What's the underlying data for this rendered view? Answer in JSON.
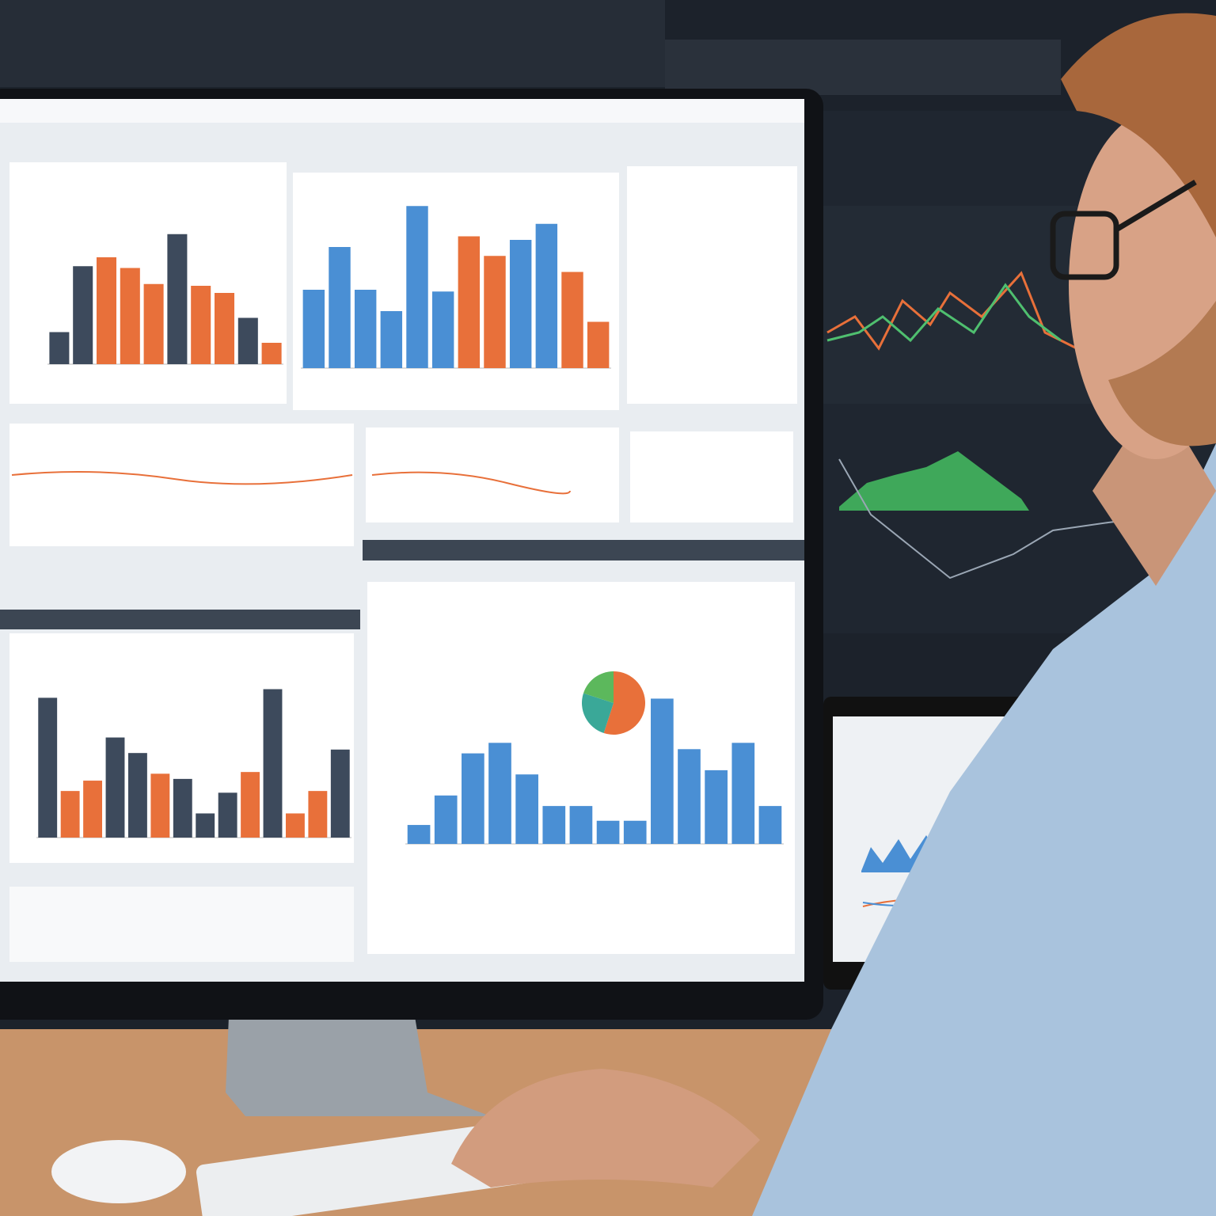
{
  "charts": [
    {
      "type": "bar",
      "ylim": [
        0,
        100
      ],
      "values": [
        18,
        55,
        60,
        54,
        45,
        73,
        44,
        40,
        26,
        12
      ],
      "colors": [
        "#3d4a5c",
        "#3d4a5c",
        "#e8703a",
        "#e8703a",
        "#e8703a",
        "#3d4a5c",
        "#e8703a",
        "#e8703a",
        "#3d4a5c",
        "#e8703a"
      ]
    },
    {
      "type": "bar",
      "ylim": [
        0,
        100
      ],
      "values": [
        44,
        68,
        44,
        32,
        91,
        43,
        74,
        63,
        72,
        81,
        54,
        26
      ],
      "colors": [
        "#4a8fd4",
        "#4a8fd4",
        "#4a8fd4",
        "#4a8fd4",
        "#4a8fd4",
        "#4a8fd4",
        "#e8703a",
        "#e8703a",
        "#4a8fd4",
        "#4a8fd4",
        "#e8703a",
        "#e8703a"
      ]
    },
    {
      "type": "bar",
      "ylim": [
        0,
        100
      ],
      "values": [
        81,
        27,
        33,
        58,
        49,
        37,
        34,
        14,
        26,
        38,
        86,
        14,
        27,
        51
      ],
      "colors": [
        "#3d4a5c",
        "#e8703a",
        "#e8703a",
        "#3d4a5c",
        "#3d4a5c",
        "#e8703a",
        "#3d4a5c",
        "#3d4a5c",
        "#3d4a5c",
        "#e8703a",
        "#3d4a5c",
        "#e8703a",
        "#e8703a",
        "#3d4a5c"
      ]
    },
    {
      "type": "bar",
      "ylim": [
        0,
        100
      ],
      "values": [
        9,
        23,
        43,
        48,
        33,
        18,
        18,
        11,
        11,
        69,
        45,
        35,
        48,
        18
      ],
      "colors": [
        "#4a8fd4",
        "#4a8fd4",
        "#4a8fd4",
        "#4a8fd4",
        "#4a8fd4",
        "#4a8fd4",
        "#4a8fd4",
        "#4a8fd4",
        "#4a8fd4",
        "#4a8fd4",
        "#4a8fd4",
        "#4a8fd4",
        "#4a8fd4",
        "#4a8fd4"
      ]
    },
    {
      "type": "pie",
      "values": [
        55,
        25,
        20
      ],
      "colors": [
        "#e8703a",
        "#3aa898",
        "#5cb85c"
      ]
    }
  ]
}
